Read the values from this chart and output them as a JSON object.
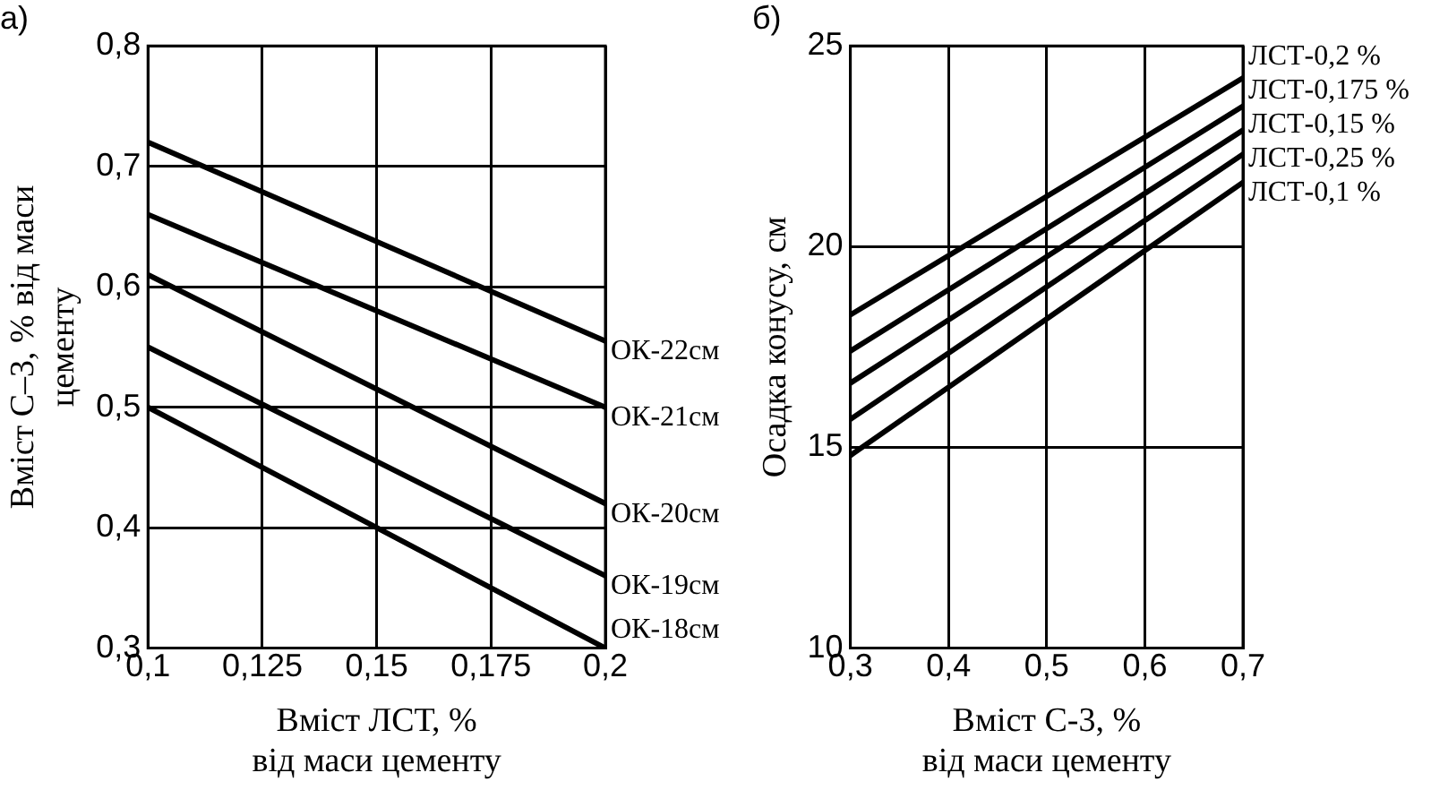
{
  "chart_data": [
    {
      "type": "line",
      "title": "а)",
      "xlabel": [
        "Вміст ЛСТ, %",
        "від маси цементу"
      ],
      "ylabel": [
        "Вміст С–3, % від маси",
        "цементу"
      ],
      "xlim": [
        0.1,
        0.2
      ],
      "xticks": [
        {
          "value": 0.1,
          "label": "0,1"
        },
        {
          "value": 0.125,
          "label": "0,125"
        },
        {
          "value": 0.15,
          "label": "0,15"
        },
        {
          "value": 0.175,
          "label": "0,175"
        },
        {
          "value": 0.2,
          "label": "0,2"
        }
      ],
      "ylim": [
        0.3,
        0.8
      ],
      "yticks": [
        {
          "value": 0.3,
          "label": "0,3"
        },
        {
          "value": 0.4,
          "label": "0,4"
        },
        {
          "value": 0.5,
          "label": "0,5"
        },
        {
          "value": 0.6,
          "label": "0,6"
        },
        {
          "value": 0.7,
          "label": "0,7"
        },
        {
          "value": 0.8,
          "label": "0,8"
        }
      ],
      "grid": true,
      "legend": false,
      "marker": "none",
      "line_style": "solid",
      "x": [
        0.1,
        0.2
      ],
      "series": [
        {
          "name": "ОК-22см",
          "color": "#000000",
          "values": [
            0.72,
            0.555
          ]
        },
        {
          "name": "ОК-21см",
          "color": "#000000",
          "values": [
            0.66,
            0.5
          ]
        },
        {
          "name": "ОК-20см",
          "color": "#000000",
          "values": [
            0.61,
            0.42
          ]
        },
        {
          "name": "ОК-19см",
          "color": "#000000",
          "values": [
            0.55,
            0.36
          ]
        },
        {
          "name": "ОК-18см",
          "color": "#000000",
          "values": [
            0.5,
            0.3
          ]
        }
      ]
    },
    {
      "type": "line",
      "title": "б)",
      "xlabel": [
        "Вміст С-3, %",
        "від маси цементу"
      ],
      "ylabel": "Осадка конусу, см",
      "xlim": [
        0.3,
        0.7
      ],
      "xticks": [
        {
          "value": 0.3,
          "label": "0,3"
        },
        {
          "value": 0.4,
          "label": "0,4"
        },
        {
          "value": 0.5,
          "label": "0,5"
        },
        {
          "value": 0.6,
          "label": "0,6"
        },
        {
          "value": 0.7,
          "label": "0,7"
        }
      ],
      "ylim": [
        10,
        25
      ],
      "yticks": [
        10,
        15,
        20,
        25
      ],
      "grid": true,
      "legend": false,
      "marker": "none",
      "line_style": "solid",
      "x": [
        0.3,
        0.7
      ],
      "series": [
        {
          "name": "ЛСТ-0,2 %",
          "color": "#000000",
          "values": [
            18.3,
            24.2
          ]
        },
        {
          "name": "ЛСТ-0,175 %",
          "color": "#000000",
          "values": [
            17.4,
            23.5
          ]
        },
        {
          "name": "ЛСТ-0,15 %",
          "color": "#000000",
          "values": [
            16.6,
            22.9
          ]
        },
        {
          "name": "ЛСТ-0,25 %",
          "color": "#000000",
          "values": [
            15.7,
            22.3
          ]
        },
        {
          "name": "ЛСТ-0,1 %",
          "color": "#000000",
          "values": [
            14.8,
            21.6
          ]
        }
      ]
    }
  ]
}
